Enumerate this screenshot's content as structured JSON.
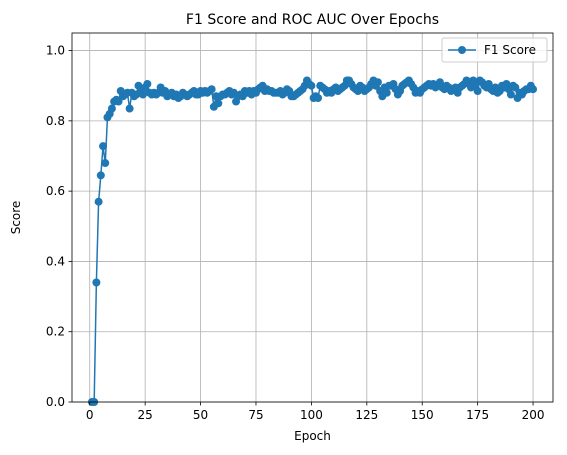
{
  "chart_data": {
    "type": "line",
    "title": "F1 Score and ROC AUC Over Epochs",
    "xlabel": "Epoch",
    "ylabel": "Score",
    "xlim": [
      -8,
      209
    ],
    "ylim": [
      0,
      1.05
    ],
    "xticks": [
      "0",
      "25",
      "50",
      "75",
      "100",
      "125",
      "150",
      "175",
      "200"
    ],
    "yticks": [
      "0.0",
      "0.2",
      "0.4",
      "0.6",
      "0.8",
      "1.0"
    ],
    "grid": true,
    "legend_position": "top-right",
    "series": [
      {
        "name": "F1 Score",
        "color": "#1f77b4",
        "marker": "circle",
        "x": [
          1,
          2,
          3,
          4,
          5,
          6,
          7,
          8,
          9,
          10,
          11,
          12,
          13,
          14,
          15,
          16,
          17,
          18,
          19,
          20,
          21,
          22,
          23,
          24,
          25,
          26,
          27,
          28,
          29,
          30,
          31,
          32,
          33,
          34,
          35,
          36,
          37,
          38,
          39,
          40,
          41,
          42,
          43,
          44,
          45,
          46,
          47,
          48,
          49,
          50,
          51,
          52,
          53,
          54,
          55,
          56,
          57,
          58,
          59,
          60,
          61,
          62,
          63,
          64,
          65,
          66,
          67,
          68,
          69,
          70,
          71,
          72,
          73,
          74,
          75,
          76,
          77,
          78,
          79,
          80,
          81,
          82,
          83,
          84,
          85,
          86,
          87,
          88,
          89,
          90,
          91,
          92,
          93,
          94,
          95,
          96,
          97,
          98,
          99,
          100,
          101,
          102,
          103,
          104,
          105,
          106,
          107,
          108,
          109,
          110,
          111,
          112,
          113,
          114,
          115,
          116,
          117,
          118,
          119,
          120,
          121,
          122,
          123,
          124,
          125,
          126,
          127,
          128,
          129,
          130,
          131,
          132,
          133,
          134,
          135,
          136,
          137,
          138,
          139,
          140,
          141,
          142,
          143,
          144,
          145,
          146,
          147,
          148,
          149,
          150,
          151,
          152,
          153,
          154,
          155,
          156,
          157,
          158,
          159,
          160,
          161,
          162,
          163,
          164,
          165,
          166,
          167,
          168,
          169,
          170,
          171,
          172,
          173,
          174,
          175,
          176,
          177,
          178,
          179,
          180,
          181,
          182,
          183,
          184,
          185,
          186,
          187,
          188,
          189,
          190,
          191,
          192,
          193,
          194,
          195,
          196,
          197,
          198,
          199,
          200
        ],
        "values": [
          0.0,
          0.0,
          0.34,
          0.57,
          0.645,
          0.728,
          0.68,
          0.81,
          0.82,
          0.835,
          0.855,
          0.86,
          0.855,
          0.885,
          0.87,
          0.875,
          0.88,
          0.835,
          0.88,
          0.87,
          0.875,
          0.9,
          0.885,
          0.875,
          0.895,
          0.905,
          0.88,
          0.875,
          0.88,
          0.875,
          0.88,
          0.895,
          0.88,
          0.885,
          0.87,
          0.875,
          0.88,
          0.87,
          0.875,
          0.865,
          0.87,
          0.88,
          0.875,
          0.87,
          0.875,
          0.88,
          0.885,
          0.875,
          0.875,
          0.885,
          0.88,
          0.885,
          0.88,
          0.885,
          0.89,
          0.84,
          0.87,
          0.85,
          0.87,
          0.875,
          0.875,
          0.88,
          0.885,
          0.875,
          0.88,
          0.855,
          0.87,
          0.875,
          0.87,
          0.885,
          0.88,
          0.885,
          0.875,
          0.885,
          0.88,
          0.89,
          0.895,
          0.9,
          0.885,
          0.89,
          0.885,
          0.885,
          0.88,
          0.88,
          0.88,
          0.885,
          0.875,
          0.88,
          0.89,
          0.885,
          0.87,
          0.87,
          0.875,
          0.88,
          0.885,
          0.89,
          0.9,
          0.915,
          0.905,
          0.9,
          0.865,
          0.87,
          0.865,
          0.9,
          0.895,
          0.89,
          0.88,
          0.885,
          0.88,
          0.89,
          0.895,
          0.885,
          0.89,
          0.895,
          0.9,
          0.915,
          0.915,
          0.905,
          0.895,
          0.89,
          0.885,
          0.9,
          0.895,
          0.885,
          0.89,
          0.895,
          0.905,
          0.915,
          0.9,
          0.91,
          0.885,
          0.87,
          0.895,
          0.88,
          0.9,
          0.9,
          0.905,
          0.89,
          0.875,
          0.885,
          0.9,
          0.905,
          0.91,
          0.915,
          0.905,
          0.895,
          0.88,
          0.885,
          0.88,
          0.89,
          0.895,
          0.9,
          0.905,
          0.9,
          0.905,
          0.895,
          0.9,
          0.91,
          0.895,
          0.89,
          0.9,
          0.895,
          0.885,
          0.89,
          0.895,
          0.88,
          0.895,
          0.9,
          0.905,
          0.915,
          0.91,
          0.895,
          0.915,
          0.9,
          0.885,
          0.915,
          0.91,
          0.9,
          0.895,
          0.905,
          0.89,
          0.885,
          0.895,
          0.88,
          0.885,
          0.9,
          0.895,
          0.905,
          0.89,
          0.875,
          0.9,
          0.895,
          0.865,
          0.88,
          0.875,
          0.885,
          0.89,
          0.89,
          0.9,
          0.89
        ]
      }
    ]
  }
}
